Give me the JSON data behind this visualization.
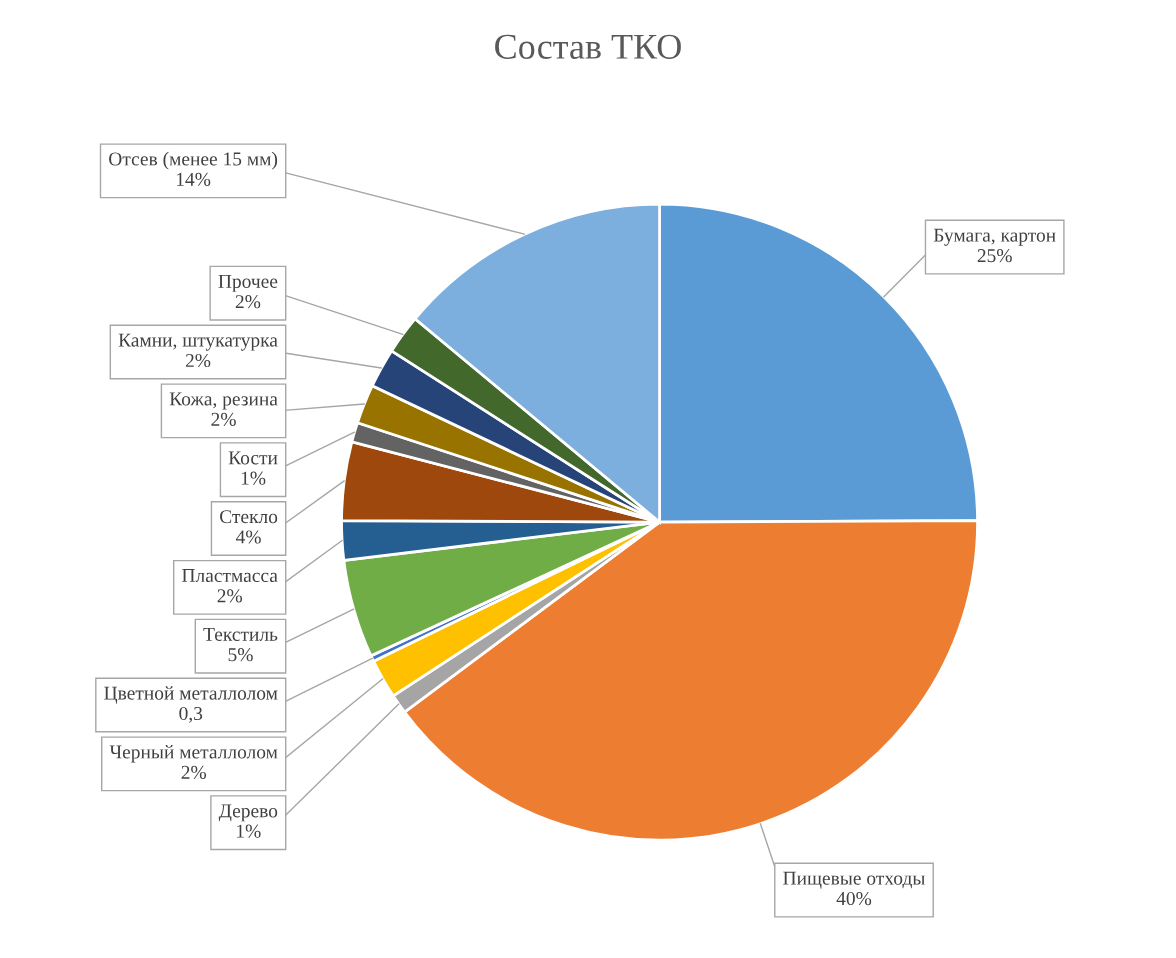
{
  "chart_data": {
    "type": "pie",
    "title": "Состав ТКО",
    "categories": [
      "Бумага, картон",
      "Пищевые отходы",
      "Дерево",
      "Черный металлолом",
      "Цветной металлолом",
      "Текстиль",
      "Пластмасса",
      "Стекло",
      "Кости",
      "Кожа, резина",
      "Камни, штукатурка",
      "Прочее",
      "Отсев (менее 15 мм)"
    ],
    "values": [
      25,
      40,
      1,
      2,
      0.3,
      5,
      2,
      4,
      1,
      2,
      2,
      2,
      14
    ],
    "value_labels": [
      "25%",
      "40%",
      "1%",
      "2%",
      "0,3",
      "5%",
      "2%",
      "4%",
      "1%",
      "2%",
      "2%",
      "2%",
      "14%"
    ],
    "colors": [
      "#5b9bd5",
      "#ed7d31",
      "#a5a5a5",
      "#ffc000",
      "#4472c4",
      "#70ad47",
      "#255e91",
      "#9e480e",
      "#636363",
      "#997300",
      "#264478",
      "#43682b",
      "#7cafdd"
    ],
    "legend": false
  }
}
